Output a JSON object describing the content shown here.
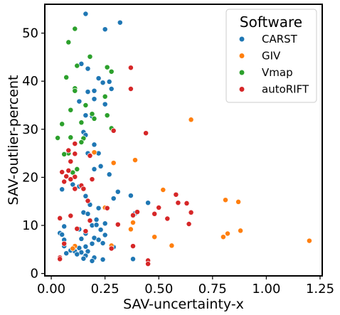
{
  "chart_data": {
    "type": "scatter",
    "xlabel": "SAV-uncertainty-x",
    "ylabel": "SAV-outlier-percent",
    "xlim": [
      -0.03,
      1.26
    ],
    "ylim": [
      -0.5,
      56
    ],
    "xticks": [
      0.0,
      0.25,
      0.5,
      0.75,
      1.0,
      1.25
    ],
    "xtick_labels": [
      "0.00",
      "0.25",
      "0.50",
      "0.75",
      "1.00",
      "1.25"
    ],
    "yticks": [
      0,
      10,
      20,
      30,
      40,
      50
    ],
    "ytick_labels": [
      "0",
      "10",
      "20",
      "30",
      "40",
      "50"
    ],
    "grid": false,
    "legend": {
      "title": "Software",
      "placement": "top-right",
      "entries": [
        "CARST",
        "GIV",
        "Vmap",
        "autoRIFT"
      ]
    },
    "series": [
      {
        "name": "CARST",
        "color": "#1f77b4",
        "points": [
          [
            0.16,
            54.0
          ],
          [
            0.32,
            52.2
          ],
          [
            0.25,
            50.8
          ],
          [
            0.14,
            43.6
          ],
          [
            0.17,
            42.6
          ],
          [
            0.22,
            40.6
          ],
          [
            0.24,
            39.7
          ],
          [
            0.27,
            39.9
          ],
          [
            0.28,
            38.4
          ],
          [
            0.2,
            38.0
          ],
          [
            0.17,
            37.8
          ],
          [
            0.2,
            36.3
          ],
          [
            0.13,
            35.8
          ],
          [
            0.25,
            35.2
          ],
          [
            0.16,
            32.9
          ],
          [
            0.19,
            32.7
          ],
          [
            0.15,
            29.4
          ],
          [
            0.16,
            28.8
          ],
          [
            0.2,
            26.8
          ],
          [
            0.17,
            25.0
          ],
          [
            0.22,
            25.0
          ],
          [
            0.23,
            22.3
          ],
          [
            0.2,
            21.7
          ],
          [
            0.27,
            20.6
          ],
          [
            0.1,
            18.5
          ],
          [
            0.13,
            18.1
          ],
          [
            0.05,
            17.5
          ],
          [
            0.31,
            17.0
          ],
          [
            0.37,
            16.2
          ],
          [
            0.16,
            16.1
          ],
          [
            0.29,
            15.6
          ],
          [
            0.45,
            14.7
          ],
          [
            0.18,
            14.3
          ],
          [
            0.22,
            13.6
          ],
          [
            0.15,
            12.7
          ],
          [
            0.17,
            12.4
          ],
          [
            0.39,
            12.5
          ],
          [
            0.21,
            11.2
          ],
          [
            0.04,
            11.6
          ],
          [
            0.19,
            10.0
          ],
          [
            0.21,
            10.1
          ],
          [
            0.25,
            10.4
          ],
          [
            0.06,
            9.8
          ],
          [
            0.13,
            9.2
          ],
          [
            0.23,
            9.1
          ],
          [
            0.25,
            8.0
          ],
          [
            0.16,
            8.3
          ],
          [
            0.04,
            8.4
          ],
          [
            0.05,
            8.1
          ],
          [
            0.2,
            7.4
          ],
          [
            0.06,
            7.0
          ],
          [
            0.14,
            7.2
          ],
          [
            0.22,
            7.0
          ],
          [
            0.24,
            6.3
          ],
          [
            0.29,
            5.5
          ],
          [
            0.19,
            6.2
          ],
          [
            0.16,
            5.6
          ],
          [
            0.06,
            5.7
          ],
          [
            0.13,
            5.3
          ],
          [
            0.09,
            4.8
          ],
          [
            0.14,
            4.4
          ],
          [
            0.17,
            4.6
          ],
          [
            0.11,
            4.6
          ],
          [
            0.07,
            4.2
          ],
          [
            0.12,
            4.0
          ],
          [
            0.2,
            3.3
          ],
          [
            0.16,
            3.7
          ],
          [
            0.15,
            3.1
          ],
          [
            0.19,
            2.6
          ],
          [
            0.24,
            2.9
          ],
          [
            0.38,
            3.0
          ]
        ]
      },
      {
        "name": "GIV",
        "color": "#ff7f0e",
        "points": [
          [
            0.65,
            32.0
          ],
          [
            0.39,
            23.6
          ],
          [
            0.29,
            23.0
          ],
          [
            0.2,
            25.2
          ],
          [
            0.52,
            17.4
          ],
          [
            0.81,
            15.3
          ],
          [
            0.87,
            14.9
          ],
          [
            0.25,
            13.7
          ],
          [
            0.38,
            10.6
          ],
          [
            0.37,
            9.2
          ],
          [
            0.88,
            8.9
          ],
          [
            0.82,
            8.3
          ],
          [
            0.8,
            7.6
          ],
          [
            0.48,
            7.6
          ],
          [
            1.2,
            6.8
          ],
          [
            0.56,
            5.8
          ],
          [
            0.28,
            5.8
          ],
          [
            0.11,
            5.7
          ],
          [
            0.1,
            5.2
          ]
        ]
      },
      {
        "name": "Vmap",
        "color": "#2ca02c",
        "points": [
          [
            0.11,
            50.9
          ],
          [
            0.08,
            48.1
          ],
          [
            0.18,
            45.1
          ],
          [
            0.26,
            42.9
          ],
          [
            0.12,
            43.2
          ],
          [
            0.28,
            42.0
          ],
          [
            0.07,
            40.8
          ],
          [
            0.11,
            38.5
          ],
          [
            0.11,
            38.0
          ],
          [
            0.25,
            36.8
          ],
          [
            0.16,
            35.0
          ],
          [
            0.09,
            34.0
          ],
          [
            0.19,
            33.2
          ],
          [
            0.26,
            32.9
          ],
          [
            0.2,
            32.2
          ],
          [
            0.14,
            31.4
          ],
          [
            0.05,
            31.1
          ],
          [
            0.28,
            30.2
          ],
          [
            0.03,
            28.2
          ],
          [
            0.09,
            28.3
          ],
          [
            0.15,
            28.1
          ],
          [
            0.14,
            27.3
          ],
          [
            0.08,
            25.0
          ],
          [
            0.06,
            24.8
          ],
          [
            0.12,
            21.7
          ],
          [
            0.1,
            21.0
          ]
        ]
      },
      {
        "name": "autoRIFT",
        "color": "#d62728",
        "points": [
          [
            0.37,
            42.8
          ],
          [
            0.37,
            38.4
          ],
          [
            0.44,
            29.2
          ],
          [
            0.29,
            29.7
          ],
          [
            0.11,
            27.0
          ],
          [
            0.08,
            25.6
          ],
          [
            0.11,
            24.9
          ],
          [
            0.18,
            24.5
          ],
          [
            0.09,
            23.3
          ],
          [
            0.08,
            21.4
          ],
          [
            0.05,
            21.1
          ],
          [
            0.07,
            20.2
          ],
          [
            0.11,
            20.1
          ],
          [
            0.06,
            19.1
          ],
          [
            0.09,
            19.6
          ],
          [
            0.19,
            19.6
          ],
          [
            0.14,
            18.3
          ],
          [
            0.15,
            17.6
          ],
          [
            0.11,
            17.6
          ],
          [
            0.17,
            15.1
          ],
          [
            0.58,
            16.4
          ],
          [
            0.63,
            14.6
          ],
          [
            0.59,
            14.7
          ],
          [
            0.5,
            13.7
          ],
          [
            0.26,
            13.6
          ],
          [
            0.65,
            12.7
          ],
          [
            0.4,
            12.8
          ],
          [
            0.48,
            12.4
          ],
          [
            0.38,
            12.1
          ],
          [
            0.09,
            12.0
          ],
          [
            0.54,
            11.4
          ],
          [
            0.04,
            11.5
          ],
          [
            0.18,
            11.0
          ],
          [
            0.64,
            10.3
          ],
          [
            0.31,
            10.2
          ],
          [
            0.12,
            9.3
          ],
          [
            0.16,
            8.8
          ],
          [
            0.06,
            6.2
          ],
          [
            0.38,
            5.7
          ],
          [
            0.28,
            5.2
          ],
          [
            0.04,
            3.3
          ],
          [
            0.45,
            2.7
          ],
          [
            0.04,
            3.0
          ],
          [
            0.45,
            2.0
          ]
        ]
      }
    ]
  }
}
